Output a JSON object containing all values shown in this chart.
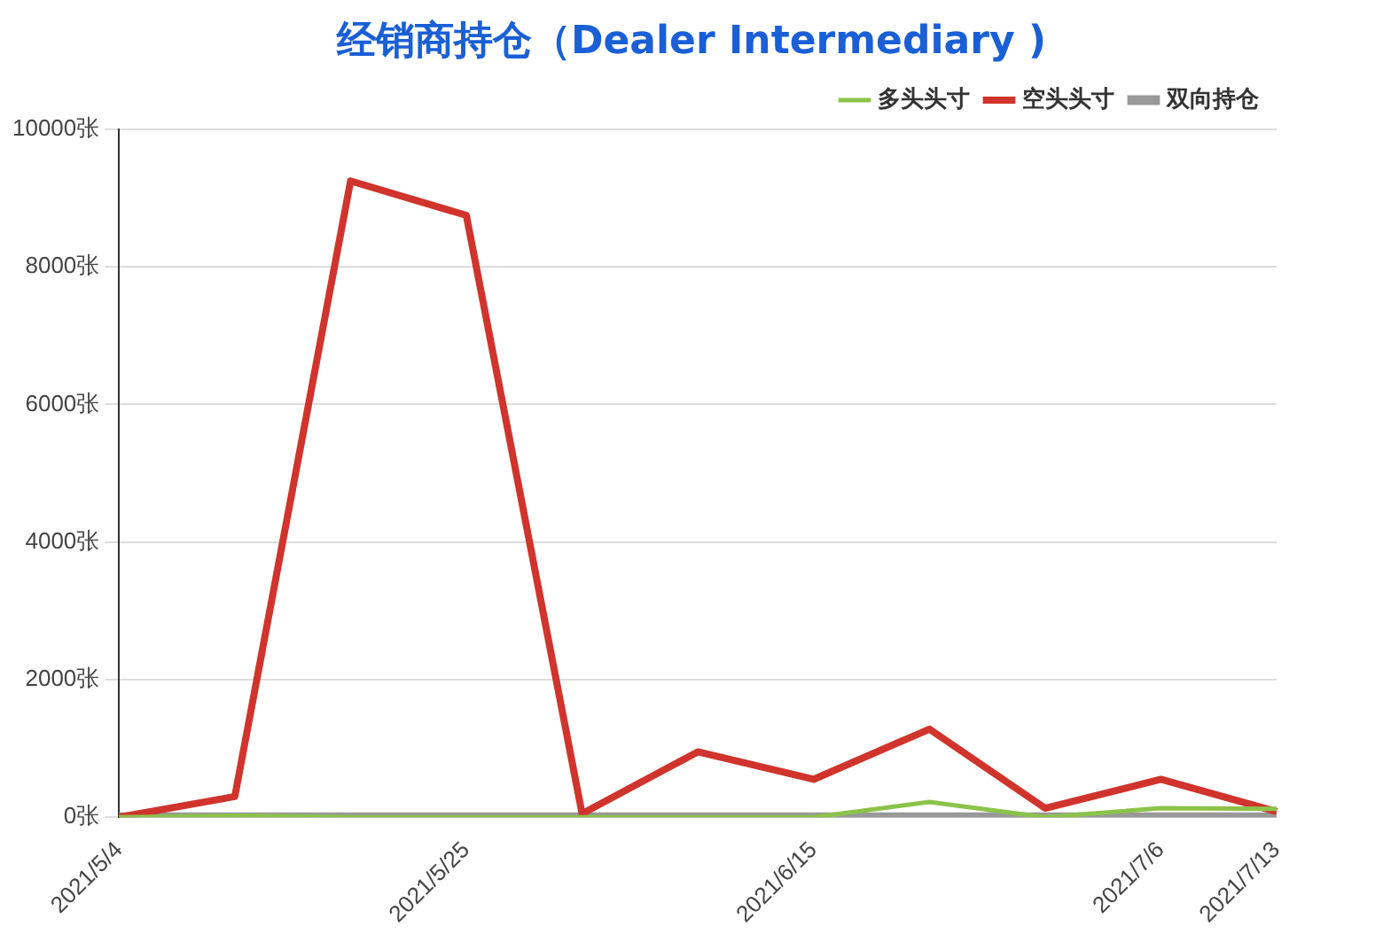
{
  "chart_data": {
    "type": "line",
    "title": "经销商持仓（Dealer Intermediary )",
    "categories": [
      "2021/5/4",
      null,
      null,
      "2021/5/25",
      null,
      null,
      "2021/6/15",
      null,
      null,
      "2021/7/6",
      "2021/7/13"
    ],
    "series": [
      {
        "name": "多头头寸",
        "color": "#8bc34a",
        "values": [
          0,
          20,
          0,
          0,
          0,
          0,
          0,
          220,
          0,
          130,
          120
        ]
      },
      {
        "name": "空头头寸",
        "color": "#d0342c",
        "values": [
          0,
          300,
          9250,
          8750,
          50,
          950,
          550,
          1280,
          130,
          550,
          80
        ]
      },
      {
        "name": "双向持仓",
        "color": "#999999",
        "values": [
          0,
          0,
          0,
          0,
          0,
          0,
          0,
          0,
          0,
          0,
          0
        ]
      }
    ],
    "ylim": [
      0,
      10000
    ],
    "yticks": [
      {
        "value": 0,
        "label": "0张"
      },
      {
        "value": 2000,
        "label": "2000张"
      },
      {
        "value": 4000,
        "label": "4000张"
      },
      {
        "value": 6000,
        "label": "6000张"
      },
      {
        "value": 8000,
        "label": "8000张"
      },
      {
        "value": 10000,
        "label": "10000张"
      }
    ],
    "grid": "y",
    "legend": "top right",
    "marker": "none",
    "line_style": "solid"
  }
}
